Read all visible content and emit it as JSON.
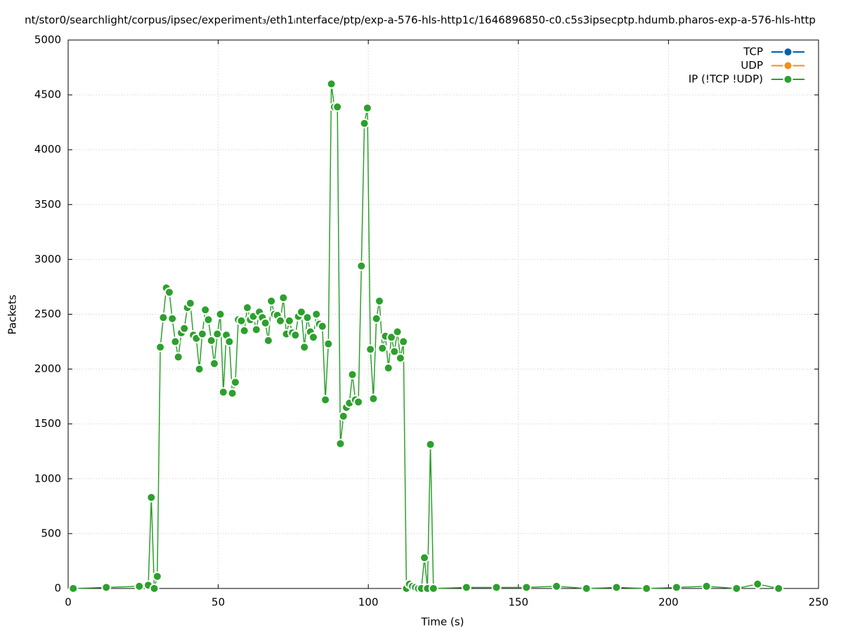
{
  "chart_data": {
    "type": "line",
    "title": "nt/stor0/searchlight/corpus/ipsec/experiment₃/eth1ᵢnterface/ptp/exp-a-576-hls-http1c/1646896850-c0.c5s3ipsecptp.hdumb.pharos-exp-a-576-hls-http",
    "x_label": "Time (s)",
    "y_label": "Packets",
    "xlim": [
      0,
      250
    ],
    "xticks": [
      0,
      50,
      100,
      150,
      200,
      250
    ],
    "ylim": [
      0,
      5000
    ],
    "yticks": [
      0,
      500,
      1000,
      1500,
      2000,
      2500,
      3000,
      3500,
      4000,
      4500,
      5000
    ],
    "grid": true,
    "legend": "top-right",
    "series": [
      {
        "name": "TCP",
        "color": "#0060ad",
        "x": [],
        "values": []
      },
      {
        "name": "UDP",
        "color": "#f28e1c",
        "x": [],
        "values": []
      },
      {
        "name": "IP (!TCP  !UDP)",
        "color": "#2ca02c",
        "x": [
          1.7,
          12.7,
          23.7,
          26.7,
          27.7,
          28.7,
          29.7,
          30.7,
          31.7,
          32.7,
          33.7,
          34.7,
          35.7,
          36.7,
          37.7,
          38.7,
          39.7,
          40.7,
          41.7,
          42.7,
          43.7,
          44.7,
          45.7,
          46.7,
          47.7,
          48.7,
          49.7,
          50.7,
          51.7,
          52.7,
          53.7,
          54.7,
          55.7,
          56.7,
          57.7,
          58.7,
          59.7,
          60.7,
          61.7,
          62.7,
          63.7,
          64.7,
          65.7,
          66.7,
          67.7,
          68.7,
          69.7,
          70.7,
          71.7,
          72.7,
          73.7,
          74.7,
          75.7,
          76.7,
          77.7,
          78.7,
          79.7,
          80.7,
          81.7,
          82.7,
          83.7,
          84.7,
          85.7,
          86.7,
          87.7,
          88.7,
          89.7,
          90.7,
          91.7,
          92.7,
          93.7,
          94.7,
          95.7,
          96.7,
          97.7,
          98.7,
          99.7,
          100.7,
          101.7,
          102.7,
          103.7,
          104.7,
          105.7,
          106.7,
          107.7,
          108.7,
          109.7,
          110.7,
          111.7,
          112.7,
          113.7,
          114.7,
          115.7,
          116.7,
          117.7,
          118.7,
          119.7,
          120.7,
          121.7,
          132.7,
          142.7,
          152.7,
          162.7,
          172.7,
          182.7,
          192.7,
          202.7,
          212.7,
          222.7,
          229.7,
          236.7
        ],
        "values": [
          0,
          10,
          20,
          30,
          830,
          0,
          110,
          2200,
          2470,
          2740,
          2700,
          2460,
          2250,
          2110,
          2330,
          2370,
          2560,
          2600,
          2310,
          2280,
          2000,
          2320,
          2540,
          2450,
          2260,
          2050,
          2320,
          2500,
          1790,
          2310,
          2250,
          1780,
          1880,
          2450,
          2440,
          2350,
          2560,
          2450,
          2480,
          2360,
          2520,
          2470,
          2420,
          2260,
          2620,
          2500,
          2490,
          2440,
          2650,
          2320,
          2440,
          2330,
          2310,
          2480,
          2520,
          2200,
          2470,
          2340,
          2290,
          2500,
          2410,
          2390,
          1720,
          2230,
          4600,
          4390,
          4390,
          1320,
          1570,
          1650,
          1690,
          1950,
          1720,
          1700,
          2940,
          4240,
          4380,
          2180,
          1730,
          2460,
          2620,
          2190,
          2300,
          2010,
          2290,
          2160,
          2340,
          2100,
          2250,
          0,
          40,
          20,
          10,
          0,
          0,
          280,
          0,
          1313,
          0,
          10,
          10,
          10,
          20,
          0,
          10,
          0,
          10,
          20,
          0,
          40,
          0
        ]
      }
    ]
  }
}
